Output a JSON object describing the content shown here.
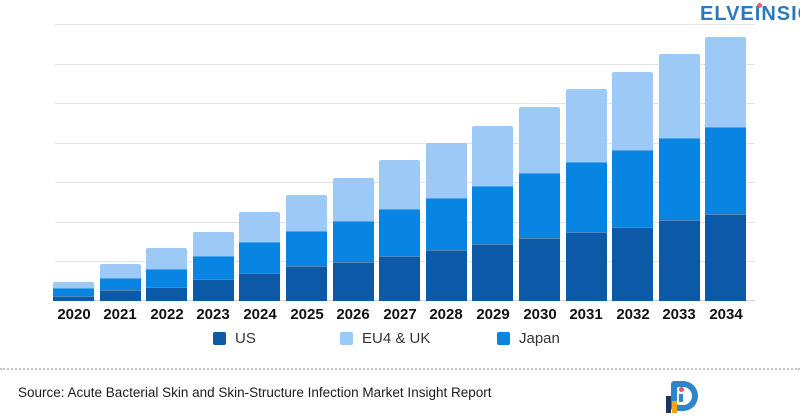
{
  "chart_data": {
    "type": "bar",
    "variant": "stacked-vertical",
    "title": "",
    "categories": [
      "2020",
      "2021",
      "2022",
      "2023",
      "2024",
      "2025",
      "2026",
      "2027",
      "2028",
      "2029",
      "2030",
      "2031",
      "2032",
      "2033",
      "2034"
    ],
    "series": [
      {
        "name": "US",
        "color": "#0c59a7",
        "values": [
          0.13,
          0.27,
          0.36,
          0.56,
          0.7,
          0.88,
          0.99,
          1.14,
          1.3,
          1.44,
          1.58,
          1.75,
          1.88,
          2.05,
          2.21
        ]
      },
      {
        "name": "Japan",
        "color": "#0884e2",
        "values": [
          0.19,
          0.3,
          0.45,
          0.59,
          0.78,
          0.89,
          1.04,
          1.18,
          1.32,
          1.47,
          1.64,
          1.77,
          1.94,
          2.08,
          2.2
        ]
      },
      {
        "name": "EU4 & UK",
        "color": "#9cc9f6",
        "values": [
          0.15,
          0.35,
          0.52,
          0.61,
          0.76,
          0.92,
          1.08,
          1.24,
          1.39,
          1.52,
          1.68,
          1.85,
          1.98,
          2.13,
          2.27
        ]
      }
    ],
    "stack_order_bottom_to_top": [
      "US",
      "Japan",
      "EU4 & UK"
    ],
    "totals": [
      0.47,
      0.92,
      1.33,
      1.76,
      2.24,
      2.69,
      3.11,
      3.56,
      4.01,
      4.43,
      4.9,
      5.37,
      5.8,
      6.26,
      6.68
    ],
    "units": "relative units (1 = one horizontal gridline interval; y-axis is unlabeled)",
    "xlabel": "",
    "ylabel": "",
    "ylim": [
      0,
      7
    ],
    "y_axis_labels_visible": false,
    "gridlines": "horizontal, 7 light-gray lines",
    "legend_position": "bottom"
  },
  "legend": {
    "items": [
      {
        "label": "US",
        "color": "#0c59a7"
      },
      {
        "label": "EU4 & UK",
        "color": "#9cc9f6"
      },
      {
        "label": "Japan",
        "color": "#0884e2"
      }
    ]
  },
  "footer": {
    "source_text": "Source: Acute Bacterial Skin and Skin-Structure Infection Market Insight Report"
  },
  "logo": {
    "d_letter": "D",
    "text_part1": "ELVE",
    "text_part2": "I",
    "text_part3": "NSIGHT",
    "full_name": "DELVEINSIGHT",
    "brand_blue": "#2b79bb",
    "accent_navy": "#1c3260",
    "accent_yellow": "#f0a819",
    "accent_red": "#e85a72"
  },
  "colors": {
    "gridline": "#e4e4e4",
    "axis_line": "#d2d2d2",
    "tick_label": "#111111",
    "legend_text": "#333333"
  }
}
